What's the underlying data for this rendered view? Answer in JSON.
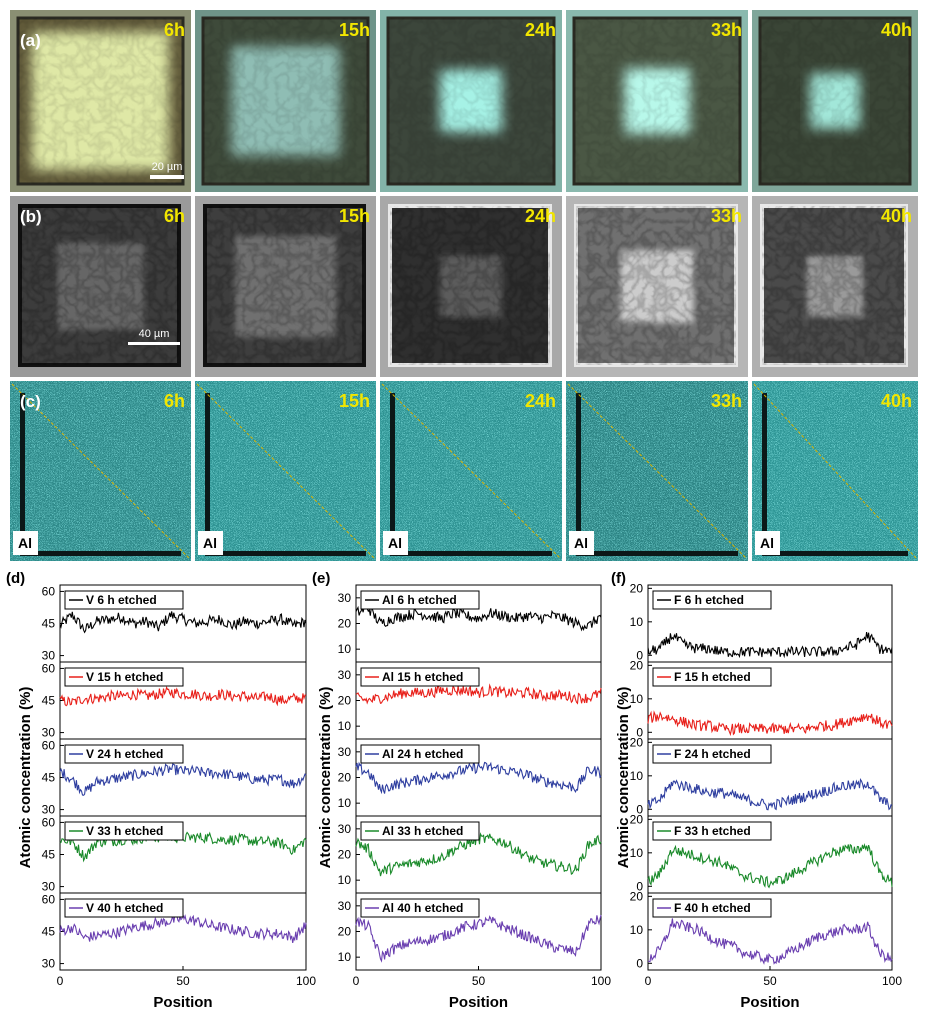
{
  "micrographs": {
    "row_a": {
      "tag": "(a)",
      "scale_bar": "20 µm",
      "times": [
        "6h",
        "15h",
        "24h",
        "33h",
        "40h"
      ],
      "colors": {
        "film": [
          "#5f5838",
          "#3e4a3a",
          "#3c463b",
          "#4a5744",
          "#3a4536"
        ],
        "core": [
          "#dfe8a6",
          "#8fbdb4",
          "#a6f2e6",
          "#b8f8ea",
          "#a2e7d9"
        ],
        "bg": [
          "#8a8f73",
          "#6f9489",
          "#83b3a8",
          "#8ab9ae",
          "#7fa69a"
        ]
      }
    },
    "row_b": {
      "tag": "(b)",
      "scale_bar": "40 µm",
      "times": [
        "6h",
        "15h",
        "24h",
        "33h",
        "40h"
      ],
      "colors": {
        "film": [
          "#3c3c3c",
          "#3e3e3e",
          "#2f2f2f",
          "#707070",
          "#4a4a4a"
        ],
        "core": [
          "#666666",
          "#707070",
          "#5b5b5b",
          "#cccccc",
          "#9a9a9a"
        ],
        "bg": [
          "#9a9a9a",
          "#a3a3a3",
          "#a8a8a8",
          "#b6b6b6",
          "#b0b0b0"
        ]
      }
    },
    "row_c": {
      "tag": "(c)",
      "element_label": "Al",
      "times": [
        "6h",
        "15h",
        "24h",
        "33h",
        "40h"
      ],
      "colors": {
        "base": [
          "#2f8a8a",
          "#2f9393",
          "#2f9393",
          "#2d8585",
          "#2f9696"
        ],
        "speckle": "#3fd0cf",
        "linescan": "#d9b300"
      }
    }
  },
  "chart_data": [
    {
      "type": "line",
      "panel": "(d)",
      "xlabel": "Position",
      "ylabel": "Atomic concentration (%)",
      "xlim": [
        0,
        100
      ],
      "xticks": [
        "0",
        "50",
        "100"
      ],
      "yticks": [
        "30",
        "45",
        "60"
      ],
      "series": [
        {
          "name": "V 6 h etched",
          "color": "#000000",
          "ylim": [
            27,
            63
          ],
          "points_x": [
            0,
            5,
            10,
            15,
            20,
            25,
            30,
            35,
            40,
            45,
            50,
            55,
            60,
            65,
            70,
            75,
            80,
            85,
            90,
            95,
            100
          ],
          "points_y": [
            44,
            49,
            42,
            46,
            47,
            48,
            45,
            46,
            43,
            49,
            47,
            45,
            46,
            47,
            44,
            46,
            45,
            46,
            47,
            44,
            46
          ]
        },
        {
          "name": "V 15 h etched",
          "color": "#e8201a",
          "ylim": [
            27,
            63
          ],
          "points_x": [
            0,
            5,
            10,
            15,
            20,
            25,
            30,
            35,
            40,
            45,
            50,
            55,
            60,
            65,
            70,
            75,
            80,
            85,
            90,
            95,
            100
          ],
          "points_y": [
            45,
            44,
            46,
            46,
            47,
            47,
            48,
            47,
            48,
            49,
            48,
            48,
            47,
            48,
            47,
            47,
            46,
            47,
            45,
            46,
            46
          ]
        },
        {
          "name": "V 24 h etched",
          "color": "#2f3fa0",
          "ylim": [
            27,
            63
          ],
          "points_x": [
            0,
            5,
            10,
            15,
            20,
            25,
            30,
            35,
            40,
            45,
            50,
            55,
            60,
            65,
            70,
            75,
            80,
            85,
            90,
            95,
            100
          ],
          "points_y": [
            48,
            44,
            38,
            43,
            44,
            45,
            46,
            47,
            48,
            49,
            48,
            48,
            47,
            47,
            46,
            45,
            44,
            44,
            44,
            42,
            46
          ]
        },
        {
          "name": "V 33 h etched",
          "color": "#1a8a2a",
          "ylim": [
            27,
            63
          ],
          "points_x": [
            0,
            5,
            10,
            15,
            20,
            25,
            30,
            35,
            40,
            45,
            50,
            55,
            60,
            65,
            70,
            75,
            80,
            85,
            90,
            95,
            100
          ],
          "points_y": [
            52,
            51,
            44,
            51,
            51,
            52,
            52,
            53,
            53,
            53,
            53,
            53,
            53,
            52,
            52,
            52,
            51,
            51,
            50,
            47,
            52
          ]
        },
        {
          "name": "V 40 h etched",
          "color": "#6a3fb0",
          "ylim": [
            27,
            63
          ],
          "points_x": [
            0,
            5,
            10,
            15,
            20,
            25,
            30,
            35,
            40,
            45,
            50,
            55,
            60,
            65,
            70,
            75,
            80,
            85,
            90,
            95,
            100
          ],
          "points_y": [
            45,
            47,
            42,
            43,
            44,
            45,
            47,
            48,
            49,
            50,
            51,
            50,
            48,
            47,
            46,
            45,
            44,
            44,
            44,
            42,
            48
          ]
        }
      ]
    },
    {
      "type": "line",
      "panel": "(e)",
      "xlabel": "Position",
      "ylabel": "Atomic concentration (%)",
      "xlim": [
        0,
        100
      ],
      "xticks": [
        "0",
        "50",
        "100"
      ],
      "yticks": [
        "10",
        "20",
        "30"
      ],
      "series": [
        {
          "name": "Al 6 h etched",
          "color": "#000000",
          "ylim": [
            5,
            35
          ],
          "points_x": [
            0,
            5,
            10,
            15,
            20,
            25,
            30,
            35,
            40,
            45,
            50,
            55,
            60,
            65,
            70,
            75,
            80,
            85,
            90,
            95,
            100
          ],
          "points_y": [
            24,
            26,
            20,
            22,
            23,
            24,
            23,
            22,
            24,
            23,
            22,
            24,
            23,
            22,
            23,
            22,
            23,
            22,
            20,
            19,
            23
          ]
        },
        {
          "name": "Al 15 h etched",
          "color": "#e8201a",
          "ylim": [
            5,
            35
          ],
          "points_x": [
            0,
            5,
            10,
            15,
            20,
            25,
            30,
            35,
            40,
            45,
            50,
            55,
            60,
            65,
            70,
            75,
            80,
            85,
            90,
            95,
            100
          ],
          "points_y": [
            21,
            20,
            21,
            22,
            23,
            23,
            23,
            24,
            24,
            24,
            23,
            24,
            23,
            23,
            23,
            22,
            22,
            22,
            21,
            21,
            23
          ]
        },
        {
          "name": "Al 24 h etched",
          "color": "#2f3fa0",
          "ylim": [
            5,
            35
          ],
          "points_x": [
            0,
            5,
            10,
            15,
            20,
            25,
            30,
            35,
            40,
            45,
            50,
            55,
            60,
            65,
            70,
            75,
            80,
            85,
            90,
            95,
            100
          ],
          "points_y": [
            24,
            22,
            15,
            17,
            18,
            19,
            20,
            21,
            22,
            23,
            24,
            24,
            23,
            22,
            21,
            19,
            18,
            17,
            16,
            23,
            22
          ]
        },
        {
          "name": "Al 33 h etched",
          "color": "#1a8a2a",
          "ylim": [
            5,
            35
          ],
          "points_x": [
            0,
            5,
            10,
            15,
            20,
            25,
            30,
            35,
            40,
            45,
            50,
            55,
            60,
            65,
            70,
            75,
            80,
            85,
            90,
            95,
            100
          ],
          "points_y": [
            25,
            22,
            13,
            15,
            16,
            17,
            18,
            19,
            22,
            24,
            26,
            26,
            25,
            22,
            19,
            17,
            16,
            15,
            14,
            24,
            26
          ]
        },
        {
          "name": "Al 40 h etched",
          "color": "#6a3fb0",
          "ylim": [
            5,
            35
          ],
          "points_x": [
            0,
            5,
            10,
            15,
            20,
            25,
            30,
            35,
            40,
            45,
            50,
            55,
            60,
            65,
            70,
            75,
            80,
            85,
            90,
            95,
            100
          ],
          "points_y": [
            24,
            22,
            10,
            13,
            15,
            16,
            17,
            18,
            20,
            22,
            23,
            24,
            22,
            20,
            18,
            16,
            14,
            13,
            12,
            23,
            25
          ]
        }
      ]
    },
    {
      "type": "line",
      "panel": "(f)",
      "xlabel": "Position",
      "ylabel": "Atomic concentration (%)",
      "xlim": [
        0,
        100
      ],
      "xticks": [
        "0",
        "50",
        "100"
      ],
      "yticks": [
        "0",
        "10",
        "20"
      ],
      "series": [
        {
          "name": "F 6 h etched",
          "color": "#000000",
          "ylim": [
            -2,
            21
          ],
          "points_x": [
            0,
            5,
            10,
            15,
            20,
            25,
            30,
            35,
            40,
            45,
            50,
            55,
            60,
            65,
            70,
            75,
            80,
            85,
            90,
            95,
            100
          ],
          "points_y": [
            1,
            2,
            6,
            3,
            2,
            2,
            1,
            1,
            1,
            1,
            1,
            1,
            1,
            1,
            1,
            1,
            2,
            3,
            6,
            2,
            1
          ]
        },
        {
          "name": "F 15 h etched",
          "color": "#e8201a",
          "ylim": [
            -2,
            21
          ],
          "points_x": [
            0,
            5,
            10,
            15,
            20,
            25,
            30,
            35,
            40,
            45,
            50,
            55,
            60,
            65,
            70,
            75,
            80,
            85,
            90,
            95,
            100
          ],
          "points_y": [
            4,
            5,
            4,
            3,
            2,
            2,
            1,
            1,
            1,
            1,
            1,
            1,
            1,
            1,
            2,
            2,
            3,
            4,
            5,
            3,
            2
          ]
        },
        {
          "name": "F 24 h etched",
          "color": "#2f3fa0",
          "ylim": [
            -2,
            21
          ],
          "points_x": [
            0,
            5,
            10,
            15,
            20,
            25,
            30,
            35,
            40,
            45,
            50,
            55,
            60,
            65,
            70,
            75,
            80,
            85,
            90,
            95,
            100
          ],
          "points_y": [
            1,
            3,
            8,
            7,
            6,
            5,
            5,
            4,
            3,
            2,
            1,
            2,
            3,
            4,
            5,
            6,
            7,
            7,
            8,
            3,
            1
          ]
        },
        {
          "name": "F 33 h etched",
          "color": "#1a8a2a",
          "ylim": [
            -2,
            21
          ],
          "points_x": [
            0,
            5,
            10,
            15,
            20,
            25,
            30,
            35,
            40,
            45,
            50,
            55,
            60,
            65,
            70,
            75,
            80,
            85,
            90,
            95,
            100
          ],
          "points_y": [
            1,
            4,
            11,
            10,
            9,
            8,
            7,
            5,
            3,
            2,
            1,
            2,
            4,
            6,
            8,
            10,
            11,
            11,
            12,
            4,
            1
          ]
        },
        {
          "name": "F 40 h etched",
          "color": "#6a3fb0",
          "ylim": [
            -2,
            21
          ],
          "points_x": [
            0,
            5,
            10,
            15,
            20,
            25,
            30,
            35,
            40,
            45,
            50,
            55,
            60,
            65,
            70,
            75,
            80,
            85,
            90,
            95,
            100
          ],
          "points_y": [
            1,
            4,
            12,
            11,
            10,
            8,
            6,
            5,
            3,
            2,
            1,
            2,
            4,
            6,
            8,
            9,
            10,
            10,
            11,
            3,
            1
          ]
        }
      ]
    }
  ]
}
